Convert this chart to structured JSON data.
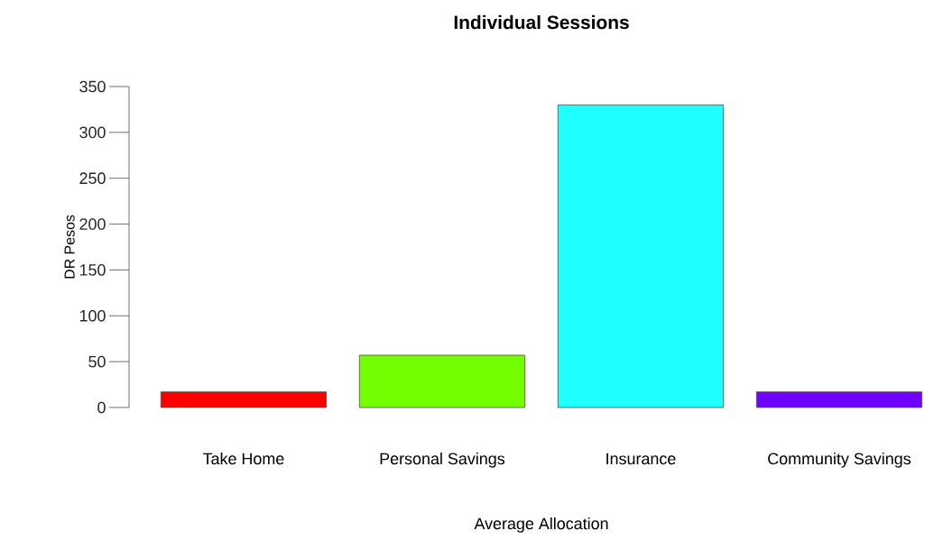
{
  "chart_data": {
    "type": "bar",
    "title": "Individual Sessions",
    "xlabel": "Average Allocation",
    "ylabel": "DR Pesos",
    "categories": [
      "Take Home",
      "Personal Savings",
      "Insurance",
      "Community Savings"
    ],
    "values": [
      17,
      57,
      330,
      17
    ],
    "colors": [
      "#ff0000",
      "#73ff00",
      "#1fffff",
      "#7000ff"
    ],
    "ylim": [
      0,
      350
    ],
    "yticks": [
      0,
      50,
      100,
      150,
      200,
      250,
      300,
      350
    ],
    "grid": false
  }
}
